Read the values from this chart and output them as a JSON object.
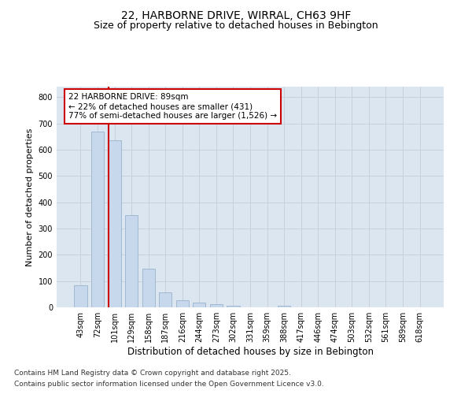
{
  "title_line1": "22, HARBORNE DRIVE, WIRRAL, CH63 9HF",
  "title_line2": "Size of property relative to detached houses in Bebington",
  "xlabel": "Distribution of detached houses by size in Bebington",
  "ylabel": "Number of detached properties",
  "categories": [
    "43sqm",
    "72sqm",
    "101sqm",
    "129sqm",
    "158sqm",
    "187sqm",
    "216sqm",
    "244sqm",
    "273sqm",
    "302sqm",
    "331sqm",
    "359sqm",
    "388sqm",
    "417sqm",
    "446sqm",
    "474sqm",
    "503sqm",
    "532sqm",
    "561sqm",
    "589sqm",
    "618sqm"
  ],
  "values": [
    85,
    670,
    635,
    350,
    148,
    58,
    27,
    17,
    13,
    7,
    0,
    0,
    5,
    0,
    0,
    0,
    0,
    0,
    0,
    0,
    0
  ],
  "bar_color": "#c8d8ec",
  "bar_edgecolor": "#9ab4cc",
  "vline_x_index": 1.67,
  "vline_color": "#cc0000",
  "annotation_text": "22 HARBORNE DRIVE: 89sqm\n← 22% of detached houses are smaller (431)\n77% of semi-detached houses are larger (1,526) →",
  "annotation_box_edgecolor": "#cc0000",
  "annotation_box_facecolor": "#ffffff",
  "ylim": [
    0,
    840
  ],
  "yticks": [
    0,
    100,
    200,
    300,
    400,
    500,
    600,
    700,
    800
  ],
  "grid_color": "#c8d0dc",
  "bg_color": "#dce6f0",
  "plot_bg": "#ffffff",
  "footer_line1": "Contains HM Land Registry data © Crown copyright and database right 2025.",
  "footer_line2": "Contains public sector information licensed under the Open Government Licence v3.0.",
  "title_fontsize": 10,
  "subtitle_fontsize": 9,
  "tick_fontsize": 7,
  "xlabel_fontsize": 8.5,
  "ylabel_fontsize": 8,
  "annot_fontsize": 7.5,
  "footer_fontsize": 6.5
}
